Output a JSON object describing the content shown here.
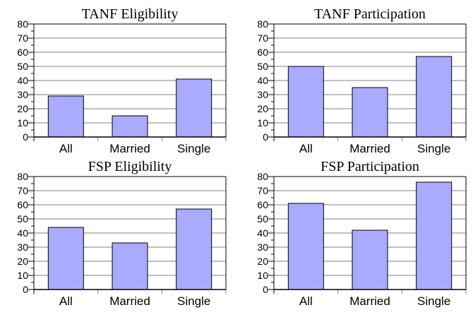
{
  "chart_data": [
    {
      "type": "bar",
      "title": "TANF Eligibility",
      "categories": [
        "All",
        "Married",
        "Single"
      ],
      "values": [
        29,
        15,
        41
      ],
      "ylim": [
        0,
        80
      ],
      "yticks": [
        "0",
        "10",
        "20",
        "30",
        "40",
        "50",
        "60",
        "70",
        "80"
      ],
      "grid": true,
      "bar_color": "#aaaaff"
    },
    {
      "type": "bar",
      "title": "TANF Participation",
      "categories": [
        "All",
        "Married",
        "Single"
      ],
      "values": [
        50,
        35,
        57
      ],
      "ylim": [
        0,
        80
      ],
      "yticks": [
        "0",
        "10",
        "20",
        "30",
        "40",
        "50",
        "60",
        "70",
        "80"
      ],
      "grid": true,
      "bar_color": "#aaaaff"
    },
    {
      "type": "bar",
      "title": "FSP Eligibility",
      "categories": [
        "All",
        "Married",
        "Single"
      ],
      "values": [
        44,
        33,
        57
      ],
      "ylim": [
        0,
        80
      ],
      "yticks": [
        "0",
        "10",
        "20",
        "30",
        "40",
        "50",
        "60",
        "70",
        "80"
      ],
      "grid": true,
      "bar_color": "#aaaaff"
    },
    {
      "type": "bar",
      "title": "FSP Participation",
      "categories": [
        "All",
        "Married",
        "Single"
      ],
      "values": [
        61,
        42,
        76
      ],
      "ylim": [
        0,
        80
      ],
      "yticks": [
        "0",
        "10",
        "20",
        "30",
        "40",
        "50",
        "60",
        "70",
        "80"
      ],
      "grid": true,
      "bar_color": "#aaaaff"
    }
  ]
}
